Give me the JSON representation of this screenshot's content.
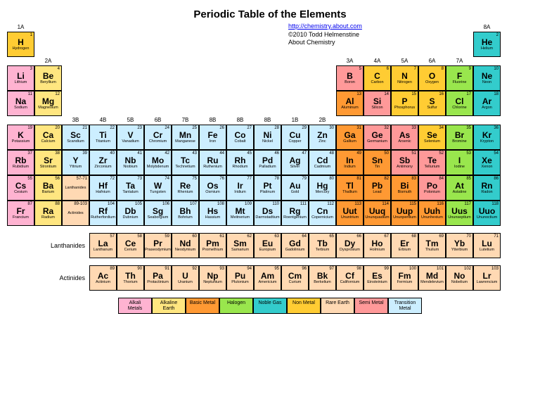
{
  "title": "Periodic Table of the Elements",
  "link_text": "http://chemistry.about.com",
  "copyright": "©2010 Todd Helmenstine",
  "about": "About Chemistry",
  "colors": {
    "alkali": "#ffb3d1",
    "alkaline": "#ffe680",
    "basic": "#ff9933",
    "halogen": "#99e64d",
    "noble": "#33cccc",
    "nonmetal": "#ffcc33",
    "rare": "#ffd9b3",
    "semi": "#ff9999",
    "trans": "#cceeff"
  },
  "group_labels": [
    "1A",
    "2A",
    "3B",
    "4B",
    "5B",
    "6B",
    "7B",
    "8B",
    "8B",
    "8B",
    "1B",
    "2B",
    "3A",
    "4A",
    "5A",
    "6A",
    "7A",
    "8A"
  ],
  "lanth_label": "Lanthanides",
  "act_label": "Actinides",
  "legend": [
    {
      "t": "Alkali Metals",
      "c": "alkali"
    },
    {
      "t": "Alkaline Earth",
      "c": "alkaline"
    },
    {
      "t": "Basic Metal",
      "c": "basic"
    },
    {
      "t": "Halogen",
      "c": "halogen"
    },
    {
      "t": "Noble Gas",
      "c": "noble"
    },
    {
      "t": "Non Metal",
      "c": "nonmetal"
    },
    {
      "t": "Rare Earth",
      "c": "rare"
    },
    {
      "t": "Semi Metal",
      "c": "semi"
    },
    {
      "t": "Transition Metal",
      "c": "trans"
    }
  ],
  "elements": [
    {
      "n": 1,
      "s": "H",
      "m": "Hydrogen",
      "c": "nonmetal",
      "r": 1,
      "g": 1
    },
    {
      "n": 2,
      "s": "He",
      "m": "Helium",
      "c": "noble",
      "r": 1,
      "g": 18
    },
    {
      "n": 3,
      "s": "Li",
      "m": "Lithium",
      "c": "alkali",
      "r": 2,
      "g": 1
    },
    {
      "n": 4,
      "s": "Be",
      "m": "Beryllium",
      "c": "alkaline",
      "r": 2,
      "g": 2
    },
    {
      "n": 5,
      "s": "B",
      "m": "Boron",
      "c": "semi",
      "r": 2,
      "g": 13
    },
    {
      "n": 6,
      "s": "C",
      "m": "Carbon",
      "c": "nonmetal",
      "r": 2,
      "g": 14
    },
    {
      "n": 7,
      "s": "N",
      "m": "Nitrogen",
      "c": "nonmetal",
      "r": 2,
      "g": 15
    },
    {
      "n": 8,
      "s": "O",
      "m": "Oxygen",
      "c": "nonmetal",
      "r": 2,
      "g": 16
    },
    {
      "n": 9,
      "s": "F",
      "m": "Fluorine",
      "c": "halogen",
      "r": 2,
      "g": 17
    },
    {
      "n": 10,
      "s": "Ne",
      "m": "Neon",
      "c": "noble",
      "r": 2,
      "g": 18
    },
    {
      "n": 11,
      "s": "Na",
      "m": "Sodium",
      "c": "alkali",
      "r": 3,
      "g": 1
    },
    {
      "n": 12,
      "s": "Mg",
      "m": "Magnesium",
      "c": "alkaline",
      "r": 3,
      "g": 2
    },
    {
      "n": 13,
      "s": "Al",
      "m": "Aluminum",
      "c": "basic",
      "r": 3,
      "g": 13
    },
    {
      "n": 14,
      "s": "Si",
      "m": "Silicon",
      "c": "semi",
      "r": 3,
      "g": 14
    },
    {
      "n": 15,
      "s": "P",
      "m": "Phosphorus",
      "c": "nonmetal",
      "r": 3,
      "g": 15
    },
    {
      "n": 16,
      "s": "S",
      "m": "Sulfur",
      "c": "nonmetal",
      "r": 3,
      "g": 16
    },
    {
      "n": 17,
      "s": "Cl",
      "m": "Chlorine",
      "c": "halogen",
      "r": 3,
      "g": 17
    },
    {
      "n": 18,
      "s": "Ar",
      "m": "Argon",
      "c": "noble",
      "r": 3,
      "g": 18
    },
    {
      "n": 19,
      "s": "K",
      "m": "Potassium",
      "c": "alkali",
      "r": 4,
      "g": 1
    },
    {
      "n": 20,
      "s": "Ca",
      "m": "Calcium",
      "c": "alkaline",
      "r": 4,
      "g": 2
    },
    {
      "n": 21,
      "s": "Sc",
      "m": "Scandium",
      "c": "trans",
      "r": 4,
      "g": 3
    },
    {
      "n": 22,
      "s": "Ti",
      "m": "Titanium",
      "c": "trans",
      "r": 4,
      "g": 4
    },
    {
      "n": 23,
      "s": "V",
      "m": "Vanadium",
      "c": "trans",
      "r": 4,
      "g": 5
    },
    {
      "n": 24,
      "s": "Cr",
      "m": "Chromium",
      "c": "trans",
      "r": 4,
      "g": 6
    },
    {
      "n": 25,
      "s": "Mn",
      "m": "Manganese",
      "c": "trans",
      "r": 4,
      "g": 7
    },
    {
      "n": 26,
      "s": "Fe",
      "m": "Iron",
      "c": "trans",
      "r": 4,
      "g": 8
    },
    {
      "n": 27,
      "s": "Co",
      "m": "Cobalt",
      "c": "trans",
      "r": 4,
      "g": 9
    },
    {
      "n": 28,
      "s": "Ni",
      "m": "Nickel",
      "c": "trans",
      "r": 4,
      "g": 10
    },
    {
      "n": 29,
      "s": "Cu",
      "m": "Copper",
      "c": "trans",
      "r": 4,
      "g": 11
    },
    {
      "n": 30,
      "s": "Zn",
      "m": "Zinc",
      "c": "trans",
      "r": 4,
      "g": 12
    },
    {
      "n": 31,
      "s": "Ga",
      "m": "Gallium",
      "c": "basic",
      "r": 4,
      "g": 13
    },
    {
      "n": 32,
      "s": "Ge",
      "m": "Germanium",
      "c": "semi",
      "r": 4,
      "g": 14
    },
    {
      "n": 33,
      "s": "As",
      "m": "Arsenic",
      "c": "semi",
      "r": 4,
      "g": 15
    },
    {
      "n": 34,
      "s": "Se",
      "m": "Selenium",
      "c": "nonmetal",
      "r": 4,
      "g": 16
    },
    {
      "n": 35,
      "s": "Br",
      "m": "Bromine",
      "c": "halogen",
      "r": 4,
      "g": 17
    },
    {
      "n": 36,
      "s": "Kr",
      "m": "Krypton",
      "c": "noble",
      "r": 4,
      "g": 18
    },
    {
      "n": 37,
      "s": "Rb",
      "m": "Rubidium",
      "c": "alkali",
      "r": 5,
      "g": 1
    },
    {
      "n": 38,
      "s": "Sr",
      "m": "Strontium",
      "c": "alkaline",
      "r": 5,
      "g": 2
    },
    {
      "n": 39,
      "s": "Y",
      "m": "Yttrium",
      "c": "trans",
      "r": 5,
      "g": 3
    },
    {
      "n": 40,
      "s": "Zr",
      "m": "Zirconium",
      "c": "trans",
      "r": 5,
      "g": 4
    },
    {
      "n": 41,
      "s": "Nb",
      "m": "Niobium",
      "c": "trans",
      "r": 5,
      "g": 5
    },
    {
      "n": 42,
      "s": "Mo",
      "m": "Molybdenum",
      "c": "trans",
      "r": 5,
      "g": 6
    },
    {
      "n": 43,
      "s": "Tc",
      "m": "Technetium",
      "c": "trans",
      "r": 5,
      "g": 7
    },
    {
      "n": 44,
      "s": "Ru",
      "m": "Ruthenium",
      "c": "trans",
      "r": 5,
      "g": 8
    },
    {
      "n": 45,
      "s": "Rh",
      "m": "Rhodium",
      "c": "trans",
      "r": 5,
      "g": 9
    },
    {
      "n": 46,
      "s": "Pd",
      "m": "Palladium",
      "c": "trans",
      "r": 5,
      "g": 10
    },
    {
      "n": 47,
      "s": "Ag",
      "m": "Silver",
      "c": "trans",
      "r": 5,
      "g": 11
    },
    {
      "n": 48,
      "s": "Cd",
      "m": "Cadmium",
      "c": "trans",
      "r": 5,
      "g": 12
    },
    {
      "n": 49,
      "s": "In",
      "m": "Indium",
      "c": "basic",
      "r": 5,
      "g": 13
    },
    {
      "n": 50,
      "s": "Sn",
      "m": "Tin",
      "c": "basic",
      "r": 5,
      "g": 14
    },
    {
      "n": 51,
      "s": "Sb",
      "m": "Antimony",
      "c": "semi",
      "r": 5,
      "g": 15
    },
    {
      "n": 52,
      "s": "Te",
      "m": "Tellurium",
      "c": "semi",
      "r": 5,
      "g": 16
    },
    {
      "n": 53,
      "s": "I",
      "m": "Iodine",
      "c": "halogen",
      "r": 5,
      "g": 17
    },
    {
      "n": 54,
      "s": "Xe",
      "m": "Xenon",
      "c": "noble",
      "r": 5,
      "g": 18
    },
    {
      "n": 55,
      "s": "Cs",
      "m": "Cesium",
      "c": "alkali",
      "r": 6,
      "g": 1
    },
    {
      "n": 56,
      "s": "Ba",
      "m": "Barium",
      "c": "alkaline",
      "r": 6,
      "g": 2
    },
    {
      "n": "57-71",
      "s": "",
      "m": "Lanthanides",
      "c": "rare",
      "r": 6,
      "g": 3
    },
    {
      "n": 72,
      "s": "Hf",
      "m": "Hafnium",
      "c": "trans",
      "r": 6,
      "g": 4
    },
    {
      "n": 73,
      "s": "Ta",
      "m": "Tantalum",
      "c": "trans",
      "r": 6,
      "g": 5
    },
    {
      "n": 74,
      "s": "W",
      "m": "Tungsten",
      "c": "trans",
      "r": 6,
      "g": 6
    },
    {
      "n": 75,
      "s": "Re",
      "m": "Rhenium",
      "c": "trans",
      "r": 6,
      "g": 7
    },
    {
      "n": 76,
      "s": "Os",
      "m": "Osmium",
      "c": "trans",
      "r": 6,
      "g": 8
    },
    {
      "n": 77,
      "s": "Ir",
      "m": "Iridium",
      "c": "trans",
      "r": 6,
      "g": 9
    },
    {
      "n": 78,
      "s": "Pt",
      "m": "Platinum",
      "c": "trans",
      "r": 6,
      "g": 10
    },
    {
      "n": 79,
      "s": "Au",
      "m": "Gold",
      "c": "trans",
      "r": 6,
      "g": 11
    },
    {
      "n": 80,
      "s": "Hg",
      "m": "Mercury",
      "c": "trans",
      "r": 6,
      "g": 12
    },
    {
      "n": 81,
      "s": "Tl",
      "m": "Thallium",
      "c": "basic",
      "r": 6,
      "g": 13
    },
    {
      "n": 82,
      "s": "Pb",
      "m": "Lead",
      "c": "basic",
      "r": 6,
      "g": 14
    },
    {
      "n": 83,
      "s": "Bi",
      "m": "Bismuth",
      "c": "basic",
      "r": 6,
      "g": 15
    },
    {
      "n": 84,
      "s": "Po",
      "m": "Polonium",
      "c": "semi",
      "r": 6,
      "g": 16
    },
    {
      "n": 85,
      "s": "At",
      "m": "Astatine",
      "c": "halogen",
      "r": 6,
      "g": 17
    },
    {
      "n": 86,
      "s": "Rn",
      "m": "Radon",
      "c": "noble",
      "r": 6,
      "g": 18
    },
    {
      "n": 87,
      "s": "Fr",
      "m": "Francium",
      "c": "alkali",
      "r": 7,
      "g": 1
    },
    {
      "n": 88,
      "s": "Ra",
      "m": "Radium",
      "c": "alkaline",
      "r": 7,
      "g": 2
    },
    {
      "n": "89-103",
      "s": "",
      "m": "Actinides",
      "c": "rare",
      "r": 7,
      "g": 3
    },
    {
      "n": 104,
      "s": "Rf",
      "m": "Rutherfordium",
      "c": "trans",
      "r": 7,
      "g": 4
    },
    {
      "n": 105,
      "s": "Db",
      "m": "Dubnium",
      "c": "trans",
      "r": 7,
      "g": 5
    },
    {
      "n": 106,
      "s": "Sg",
      "m": "Seaborgium",
      "c": "trans",
      "r": 7,
      "g": 6
    },
    {
      "n": 107,
      "s": "Bh",
      "m": "Bohrium",
      "c": "trans",
      "r": 7,
      "g": 7
    },
    {
      "n": 108,
      "s": "Hs",
      "m": "Hassium",
      "c": "trans",
      "r": 7,
      "g": 8
    },
    {
      "n": 109,
      "s": "Mt",
      "m": "Meitnerium",
      "c": "trans",
      "r": 7,
      "g": 9
    },
    {
      "n": 110,
      "s": "Ds",
      "m": "Darmstadtium",
      "c": "trans",
      "r": 7,
      "g": 10
    },
    {
      "n": 111,
      "s": "Rg",
      "m": "Roentgenium",
      "c": "trans",
      "r": 7,
      "g": 11
    },
    {
      "n": 112,
      "s": "Cn",
      "m": "Copernicium",
      "c": "trans",
      "r": 7,
      "g": 12
    },
    {
      "n": 113,
      "s": "Uut",
      "m": "Ununtrium",
      "c": "basic",
      "r": 7,
      "g": 13
    },
    {
      "n": 114,
      "s": "Uuq",
      "m": "Ununquadium",
      "c": "basic",
      "r": 7,
      "g": 14
    },
    {
      "n": 115,
      "s": "Uup",
      "m": "Ununpentium",
      "c": "basic",
      "r": 7,
      "g": 15
    },
    {
      "n": 116,
      "s": "Uuh",
      "m": "Ununhexium",
      "c": "basic",
      "r": 7,
      "g": 16
    },
    {
      "n": 117,
      "s": "Uus",
      "m": "Ununseptium",
      "c": "halogen",
      "r": 7,
      "g": 17
    },
    {
      "n": 118,
      "s": "Uuo",
      "m": "Ununoctium",
      "c": "noble",
      "r": 7,
      "g": 18
    }
  ],
  "lanth": [
    {
      "n": 57,
      "s": "La",
      "m": "Lanthanum"
    },
    {
      "n": 58,
      "s": "Ce",
      "m": "Cerium"
    },
    {
      "n": 59,
      "s": "Pr",
      "m": "Praseodymium"
    },
    {
      "n": 60,
      "s": "Nd",
      "m": "Neodymium"
    },
    {
      "n": 61,
      "s": "Pm",
      "m": "Promethium"
    },
    {
      "n": 62,
      "s": "Sm",
      "m": "Samarium"
    },
    {
      "n": 63,
      "s": "Eu",
      "m": "Europium"
    },
    {
      "n": 64,
      "s": "Gd",
      "m": "Gadolinium"
    },
    {
      "n": 65,
      "s": "Tb",
      "m": "Terbium"
    },
    {
      "n": 66,
      "s": "Dy",
      "m": "Dysprosium"
    },
    {
      "n": 67,
      "s": "Ho",
      "m": "Holmium"
    },
    {
      "n": 68,
      "s": "Er",
      "m": "Erbium"
    },
    {
      "n": 69,
      "s": "Tm",
      "m": "Thulium"
    },
    {
      "n": 70,
      "s": "Yb",
      "m": "Ytterbium"
    },
    {
      "n": 71,
      "s": "Lu",
      "m": "Lutetium"
    }
  ],
  "act": [
    {
      "n": 89,
      "s": "Ac",
      "m": "Actinium"
    },
    {
      "n": 90,
      "s": "Th",
      "m": "Thorium"
    },
    {
      "n": 91,
      "s": "Pa",
      "m": "Protactinium"
    },
    {
      "n": 92,
      "s": "U",
      "m": "Uranium"
    },
    {
      "n": 93,
      "s": "Np",
      "m": "Neptunium"
    },
    {
      "n": 94,
      "s": "Pu",
      "m": "Plutonium"
    },
    {
      "n": 95,
      "s": "Am",
      "m": "Americium"
    },
    {
      "n": 96,
      "s": "Cm",
      "m": "Curium"
    },
    {
      "n": 97,
      "s": "Bk",
      "m": "Berkelium"
    },
    {
      "n": 98,
      "s": "Cf",
      "m": "Californium"
    },
    {
      "n": 99,
      "s": "Es",
      "m": "Einsteinium"
    },
    {
      "n": 100,
      "s": "Fm",
      "m": "Fermium"
    },
    {
      "n": 101,
      "s": "Md",
      "m": "Mendelevium"
    },
    {
      "n": 102,
      "s": "No",
      "m": "Nobelium"
    },
    {
      "n": 103,
      "s": "Lr",
      "m": "Lawrencium"
    }
  ]
}
